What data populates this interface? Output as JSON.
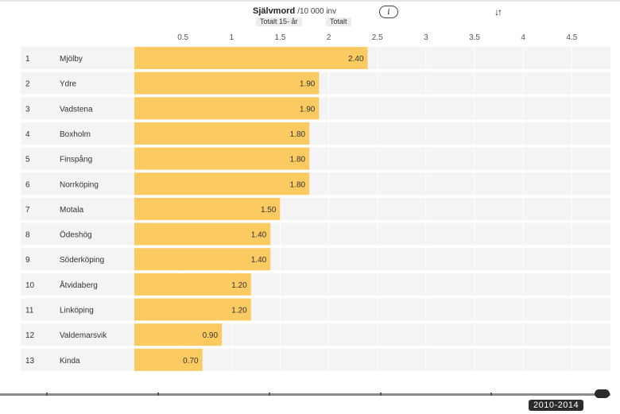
{
  "header": {
    "title": "Självmord",
    "unit": "/10 000 inv",
    "filters": [
      "Totalt 15- år",
      "Totalt"
    ],
    "info_icon": "info-icon",
    "sort_icon": "sort-icon",
    "sort_label": "↓↑"
  },
  "chart_data": {
    "type": "bar",
    "orientation": "horizontal",
    "title": "Självmord /10 000 inv",
    "xlabel": "",
    "ylabel": "",
    "xlim": [
      0,
      4.8
    ],
    "ticks": [
      0.5,
      1,
      1.5,
      2,
      2.5,
      3,
      3.5,
      4,
      4.5
    ],
    "tick_labels": [
      "0.5",
      "1",
      "1.5",
      "2",
      "2.5",
      "3",
      "3.5",
      "4",
      "4.5"
    ],
    "bar_color": "#FBCB62",
    "rows": [
      {
        "rank": "1",
        "name": "Mjölby",
        "value": 2.4,
        "label": "2.40"
      },
      {
        "rank": "2",
        "name": "Ydre",
        "value": 1.9,
        "label": "1.90"
      },
      {
        "rank": "3",
        "name": "Vadstena",
        "value": 1.9,
        "label": "1.90"
      },
      {
        "rank": "4",
        "name": "Boxholm",
        "value": 1.8,
        "label": "1.80"
      },
      {
        "rank": "5",
        "name": "Finspång",
        "value": 1.8,
        "label": "1.80"
      },
      {
        "rank": "6",
        "name": "Norrköping",
        "value": 1.8,
        "label": "1.80"
      },
      {
        "rank": "7",
        "name": "Motala",
        "value": 1.5,
        "label": "1.50"
      },
      {
        "rank": "8",
        "name": "Ödeshög",
        "value": 1.4,
        "label": "1.40"
      },
      {
        "rank": "9",
        "name": "Söderköping",
        "value": 1.4,
        "label": "1.40"
      },
      {
        "rank": "10",
        "name": "Åtvidaberg",
        "value": 1.2,
        "label": "1.20"
      },
      {
        "rank": "11",
        "name": "Linköping",
        "value": 1.2,
        "label": "1.20"
      },
      {
        "rank": "12",
        "name": "Valdemarsvik",
        "value": 0.9,
        "label": "0.90"
      },
      {
        "rank": "13",
        "name": "Kinda",
        "value": 0.7,
        "label": "0.70"
      }
    ]
  },
  "timeline": {
    "selected_period": "2010-2014",
    "position_fraction": 1.0
  }
}
